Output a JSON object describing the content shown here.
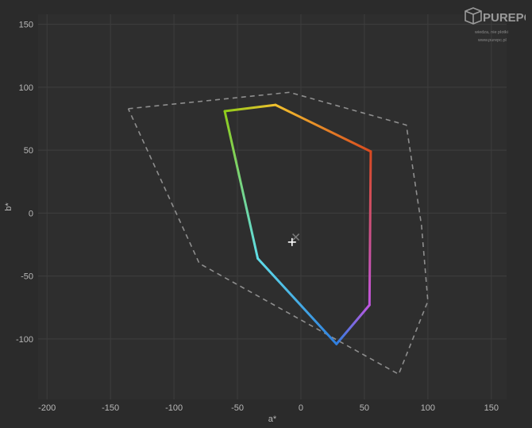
{
  "chart_data": {
    "type": "scatter",
    "xlabel": "a*",
    "ylabel": "b*",
    "xlim": [
      -207,
      162
    ],
    "ylim": [
      -148,
      158
    ],
    "xticks": [
      -200,
      -150,
      -100,
      -50,
      0,
      50,
      100,
      150
    ],
    "yticks": [
      150,
      100,
      50,
      0,
      -50,
      -100
    ],
    "grid": true,
    "reference_gamut": [
      [
        -136,
        83
      ],
      [
        -9,
        96
      ],
      [
        83,
        70
      ],
      [
        95,
        -10
      ],
      [
        100,
        -70
      ],
      [
        77,
        -128
      ],
      [
        -80,
        -40
      ],
      [
        -136,
        83
      ]
    ],
    "measured_gamut": [
      [
        -60,
        81
      ],
      [
        -20,
        86
      ],
      [
        55,
        49
      ],
      [
        54,
        -73
      ],
      [
        28,
        -104
      ],
      [
        -34,
        -36
      ],
      [
        -60,
        81
      ]
    ],
    "measured_colors": [
      "#8fcc1a",
      "#f2c12e",
      "#d94a1f",
      "#c156e0",
      "#2f7fe0",
      "#5fdde8"
    ],
    "white_point_target": [
      -4,
      -19
    ],
    "white_point_measured": [
      -7,
      -23
    ]
  },
  "watermark": {
    "brand": "PUREPC",
    "tagline": "wiedza, nie plotki",
    "url": "www.purepc.pl"
  }
}
